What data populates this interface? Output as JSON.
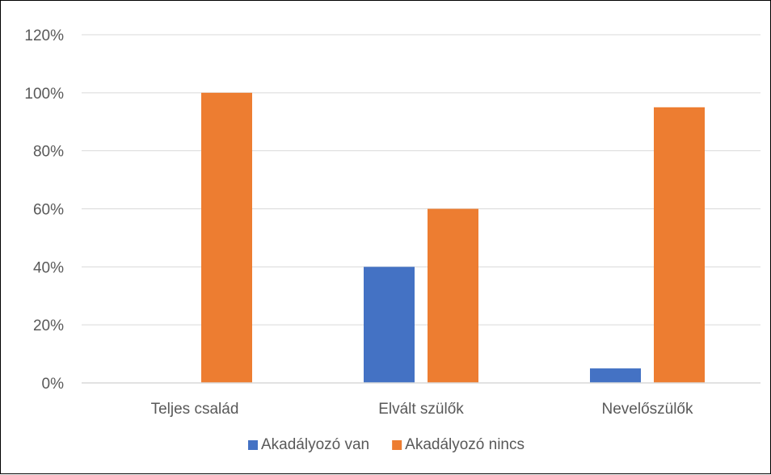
{
  "chart_data": {
    "type": "bar",
    "categories": [
      "Teljes család",
      "Elvált szülők",
      "Nevelőszülők"
    ],
    "series": [
      {
        "name": "Akadályozó van",
        "values": [
          0,
          40,
          5
        ],
        "color": "#4472C4"
      },
      {
        "name": "Akadályozó nincs",
        "values": [
          100,
          60,
          95
        ],
        "color": "#ED7D31"
      }
    ],
    "y_ticks": [
      "0%",
      "20%",
      "40%",
      "60%",
      "80%",
      "100%",
      "120%"
    ],
    "ylim": [
      0,
      120
    ],
    "y_unit": "%",
    "grid": true,
    "legend_position": "bottom",
    "gridline_color": "#D9D9D9",
    "axis_line_color": "#D9D9D9"
  }
}
